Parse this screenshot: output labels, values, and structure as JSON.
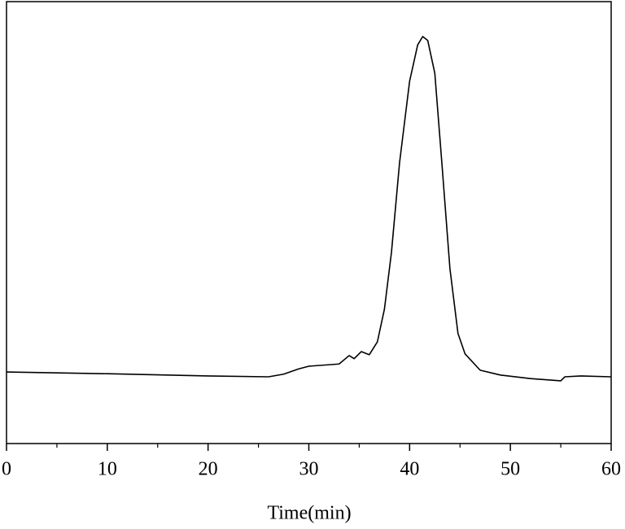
{
  "chart_data": {
    "type": "line",
    "xlabel": "Time(min)",
    "x": [
      0,
      10,
      20,
      26,
      27.5,
      29,
      30,
      33,
      34,
      34.5,
      35.2,
      36,
      36.8,
      37.5,
      38.2,
      39,
      40,
      40.8,
      41.3,
      41.8,
      42.5,
      43.2,
      44,
      44.8,
      45.5,
      47,
      49,
      52,
      55,
      55.4,
      57,
      60
    ],
    "series": [
      {
        "color": "#000000",
        "values": [
          16.2,
          15.8,
          15.3,
          15.1,
          15.7,
          16.9,
          17.5,
          18.0,
          19.9,
          19.2,
          20.8,
          20.1,
          23.0,
          30.4,
          43.3,
          63.5,
          82.0,
          90.2,
          92.1,
          91.2,
          83.8,
          63.5,
          39.6,
          24.9,
          20.3,
          16.6,
          15.5,
          14.7,
          14.2,
          15.1,
          15.3,
          15.1
        ]
      }
    ],
    "xlim": [
      0,
      60
    ],
    "xticks": [
      0,
      10,
      20,
      30,
      40,
      50,
      60
    ],
    "xminorticks": [
      5,
      15,
      25,
      35,
      45,
      55
    ],
    "ylim": [
      0,
      100
    ]
  }
}
